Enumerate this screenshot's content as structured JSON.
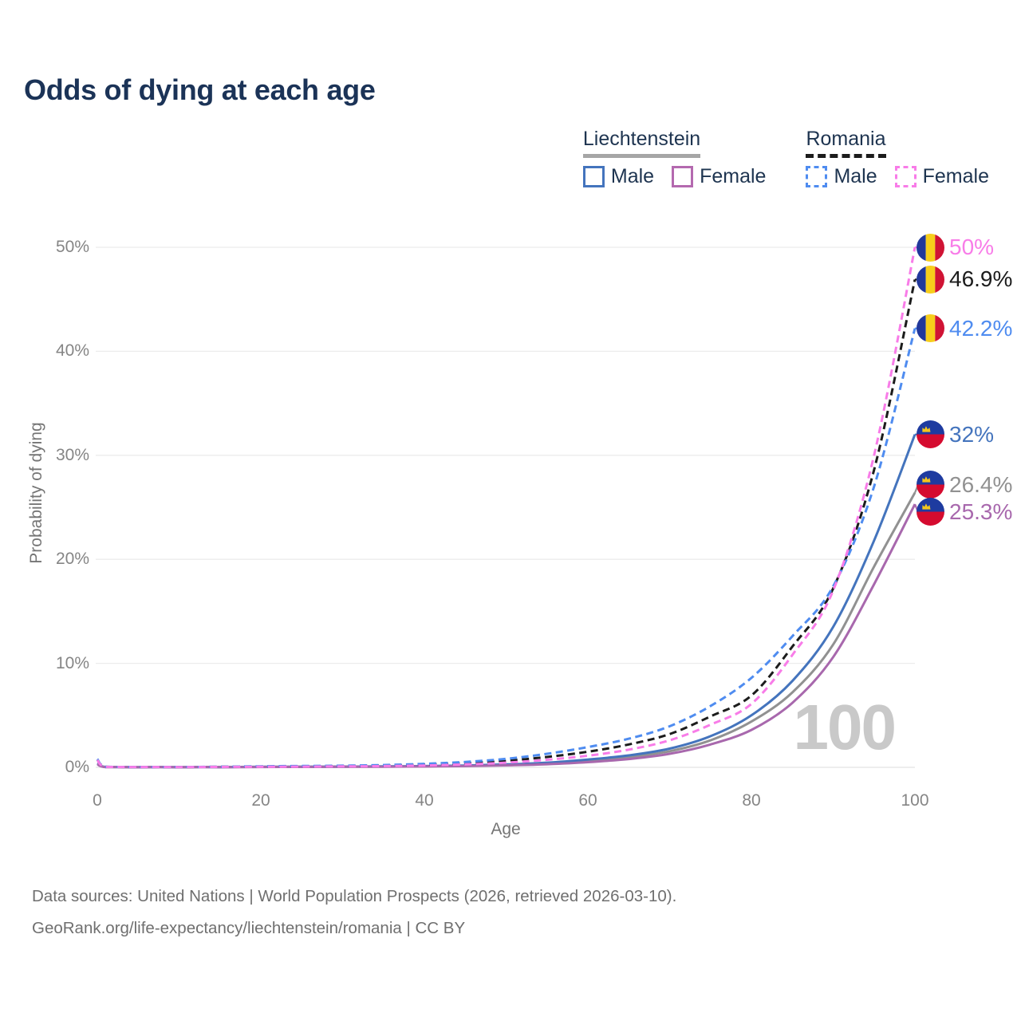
{
  "title": "Odds of dying at each age",
  "legend": {
    "position": "top-right",
    "groups": [
      {
        "country": "Liechtenstein",
        "line_style": "solid",
        "underline_color": "#a6a6a6",
        "items": [
          {
            "label": "Male",
            "color": "#4474bd"
          },
          {
            "label": "Female",
            "color": "#b469af"
          }
        ]
      },
      {
        "country": "Romania",
        "line_style": "dashed",
        "underline_color": "#1c1c1c",
        "items": [
          {
            "label": "Male",
            "color": "#4f8cf0"
          },
          {
            "label": "Female",
            "color": "#f87ce8"
          }
        ]
      }
    ]
  },
  "chart_data": {
    "type": "line",
    "title": "Odds of dying at each age",
    "xlabel": "Age",
    "ylabel": "Probability of dying",
    "xlim": [
      0,
      100
    ],
    "ylim_percent": [
      0,
      50
    ],
    "grid": "horizontal",
    "gridline_color": "#ececec",
    "x_ticks": [
      0,
      20,
      40,
      60,
      80,
      100
    ],
    "y_tick_labels": [
      "0%",
      "10%",
      "20%",
      "30%",
      "40%",
      "50%"
    ],
    "watermark": "100",
    "x": [
      0,
      1,
      5,
      10,
      15,
      20,
      25,
      30,
      35,
      40,
      45,
      50,
      55,
      60,
      65,
      70,
      75,
      80,
      85,
      90,
      95,
      100
    ],
    "series": [
      {
        "name": "Liechtenstein (both sexes)",
        "country": "liechtenstein",
        "sex": "both",
        "style": "solid",
        "color": "#919191",
        "flag": "liechtenstein",
        "end_label": "26.4%",
        "values": [
          0.35,
          0.03,
          0.01,
          0.01,
          0.02,
          0.04,
          0.05,
          0.06,
          0.08,
          0.1,
          0.15,
          0.23,
          0.38,
          0.62,
          0.98,
          1.55,
          2.6,
          4.4,
          7.2,
          11.8,
          19.3,
          26.4
        ]
      },
      {
        "name": "Liechtenstein Male",
        "country": "liechtenstein",
        "sex": "male",
        "style": "solid",
        "color": "#4474bd",
        "flag": "liechtenstein",
        "end_label": "32%",
        "values": [
          0.4,
          0.035,
          0.012,
          0.012,
          0.025,
          0.05,
          0.06,
          0.07,
          0.09,
          0.12,
          0.18,
          0.28,
          0.45,
          0.75,
          1.15,
          1.8,
          3.0,
          5.0,
          8.3,
          13.5,
          21.8,
          32
        ]
      },
      {
        "name": "Liechtenstein Female",
        "country": "liechtenstein",
        "sex": "female",
        "style": "solid",
        "color": "#a868ad",
        "flag": "liechtenstein",
        "end_label": "25.3%",
        "values": [
          0.3,
          0.025,
          0.008,
          0.008,
          0.018,
          0.03,
          0.04,
          0.05,
          0.065,
          0.085,
          0.12,
          0.19,
          0.3,
          0.5,
          0.8,
          1.3,
          2.2,
          3.6,
          6.2,
          10.6,
          17.6,
          25.3
        ]
      },
      {
        "name": "Romania (both sexes)",
        "country": "romania",
        "sex": "both",
        "style": "dashed",
        "color": "#1c1c1c",
        "flag": "romania",
        "end_label": "46.9%",
        "values": [
          0.75,
          0.06,
          0.025,
          0.025,
          0.05,
          0.08,
          0.1,
          0.12,
          0.17,
          0.26,
          0.4,
          0.63,
          1.0,
          1.5,
          2.2,
          3.2,
          4.9,
          6.9,
          11.6,
          17.2,
          28.6,
          46.9
        ]
      },
      {
        "name": "Romania Male",
        "country": "romania",
        "sex": "male",
        "style": "dashed",
        "color": "#4f8cf0",
        "flag": "romania",
        "end_label": "42.2%",
        "values": [
          0.8,
          0.065,
          0.03,
          0.03,
          0.06,
          0.1,
          0.13,
          0.16,
          0.22,
          0.34,
          0.52,
          0.82,
          1.3,
          1.95,
          2.75,
          3.95,
          5.9,
          8.6,
          12.6,
          17.4,
          27.0,
          42.2
        ]
      },
      {
        "name": "Romania Female",
        "country": "romania",
        "sex": "female",
        "style": "dashed",
        "color": "#f87ce8",
        "flag": "romania",
        "end_label": "50%",
        "values": [
          0.7,
          0.055,
          0.02,
          0.02,
          0.04,
          0.055,
          0.07,
          0.09,
          0.12,
          0.18,
          0.28,
          0.45,
          0.73,
          1.12,
          1.7,
          2.6,
          4.1,
          6.1,
          10.8,
          17.0,
          30.0,
          50.0
        ]
      }
    ],
    "flag_colors": {
      "romania": {
        "blue": "#21389b",
        "yellow": "#f7ce1b",
        "red": "#d01334"
      },
      "liechtenstein": {
        "blue": "#1e3ba0",
        "red": "#d50b2f",
        "crown": "#f2c71e"
      }
    }
  },
  "footer": {
    "line1": "Data sources: United Nations | World Population Prospects (2026, retrieved 2026-03-10).",
    "line2": "GeoRank.org/life-expectancy/liechtenstein/romania | CC BY"
  }
}
